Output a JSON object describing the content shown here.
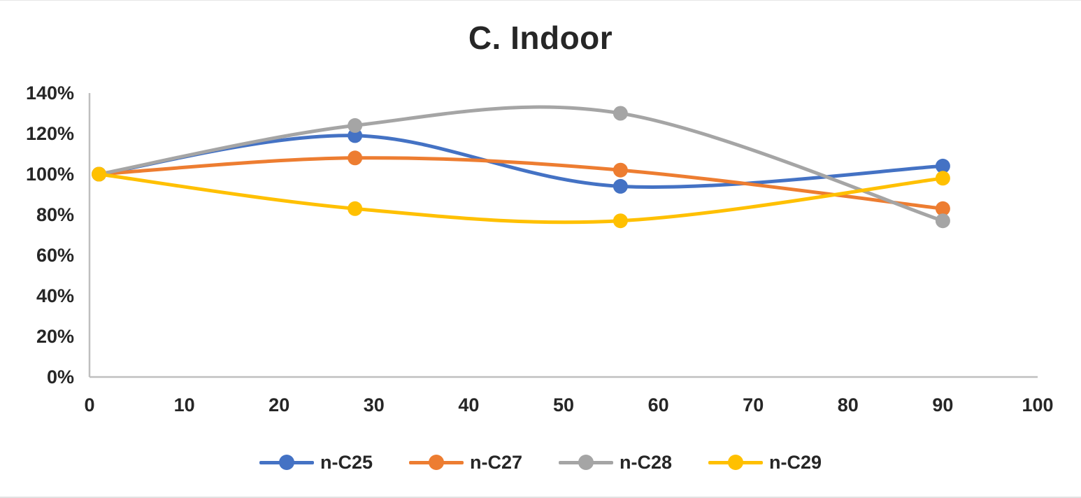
{
  "title": "C. Indoor",
  "chart_data": {
    "type": "line",
    "smooth": true,
    "title": "C. Indoor",
    "xlabel": "",
    "ylabel": "",
    "xlim": [
      0,
      100
    ],
    "ylim": [
      0,
      140
    ],
    "grid": false,
    "legend_position": "bottom",
    "axis_color": "#BFBFBF",
    "text_color": "#262626",
    "x": [
      1,
      28,
      56,
      90
    ],
    "series": [
      {
        "name": "n-C25",
        "color": "#4472C4",
        "values": [
          100,
          119,
          94,
          104
        ]
      },
      {
        "name": "n-C27",
        "color": "#ED7D31",
        "values": [
          100,
          108,
          102,
          83
        ]
      },
      {
        "name": "n-C28",
        "color": "#A5A5A5",
        "values": [
          100,
          124,
          130,
          77
        ]
      },
      {
        "name": "n-C29",
        "color": "#FFC000",
        "values": [
          100,
          83,
          77,
          98
        ]
      }
    ],
    "x_ticks": [
      0,
      10,
      20,
      30,
      40,
      50,
      60,
      70,
      80,
      90,
      100
    ],
    "x_tick_labels": [
      "0",
      "10",
      "20",
      "30",
      "40",
      "50",
      "60",
      "70",
      "80",
      "90",
      "100"
    ],
    "y_ticks": [
      0,
      20,
      40,
      60,
      80,
      100,
      120,
      140
    ],
    "y_tick_labels": [
      "0%",
      "20%",
      "40%",
      "60%",
      "80%",
      "100%",
      "120%",
      "140%"
    ]
  }
}
